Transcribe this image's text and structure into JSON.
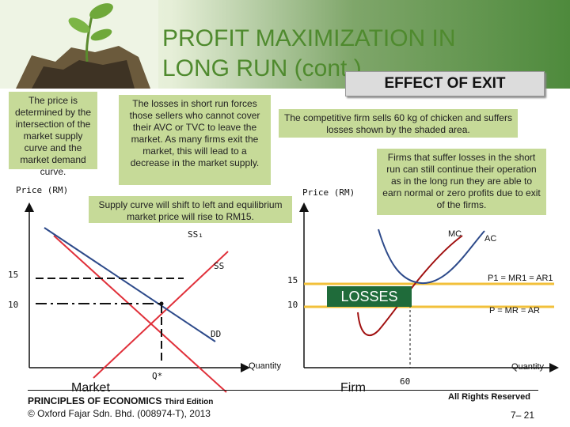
{
  "slide": {
    "title_line1": "PROFIT MAXIMIZATION IN",
    "title_line2": "LONG RUN (cont.)",
    "subtitle": "EFFECT OF EXIT"
  },
  "notes": {
    "price_intersection": "The price is determined by the intersection of the market supply curve and the market demand curve.",
    "losses_exit": "The losses in short run forces those sellers who cannot cover their AVC or TVC to leave the market. As many firms exit the market, this will lead to a decrease in the market supply.",
    "supply_shift": "Supply curve will shift to left and equilibrium market price will rise to RM15.",
    "competitive_firm": "The competitive firm sells 60 kg of chicken and suffers losses shown by the shaded area.",
    "long_run": "Firms that suffer losses in the short run can still continue their operation as in the long run they are able to earn normal or zero profits due to exit of the firms."
  },
  "market_graph": {
    "y_axis_label": "Price (RM)",
    "x_axis_label": "Quantity",
    "price_high": "15",
    "price_low": "10",
    "supply_new_label": "SS₁",
    "supply_label": "SS",
    "demand_label": "DD",
    "quantity_label": "Q*",
    "caption": "Market"
  },
  "firm_graph": {
    "y_axis_label": "Price (RM)",
    "x_axis_label": "Quantity",
    "price_high": "15",
    "price_low": "10",
    "mc_label": "MC",
    "ac_label": "AC",
    "p1_label": "P1 = MR1 = AR1",
    "p_label": "P = MR = AR",
    "losses_label": "LOSSES",
    "quantity_value": "60",
    "caption": "Firm"
  },
  "footer": {
    "book": "PRINCIPLES OF ECONOMICS",
    "edition": "Third Edition",
    "copyright": "© Oxford Fajar Sdn. Bhd. (008974-T), 2013",
    "rights": "All Rights Reserved",
    "page": "7– 21"
  },
  "colors": {
    "accent_green": "#4f8a2e",
    "note_background": "#c6da98",
    "supply_curves": "#e0303a",
    "demand_curve": "#2d4a8a",
    "price_line_high": "#f2c03a",
    "price_line_low": "#f2c03a",
    "losses_box": "#1f6b3a"
  }
}
